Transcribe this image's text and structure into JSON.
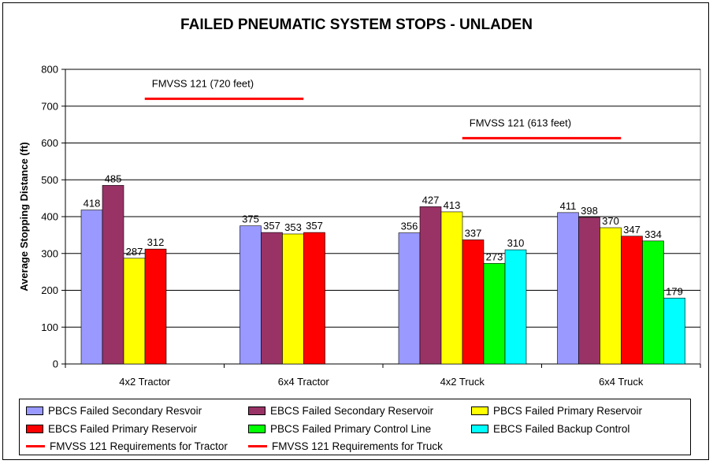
{
  "chart_data": {
    "type": "bar",
    "title": "FAILED PNEUMATIC SYSTEM STOPS - UNLADEN",
    "ylabel": "Average Stopping Distance (ft)",
    "xlabel": "",
    "ylim": [
      0,
      800
    ],
    "yticks": [
      "0",
      "100",
      "200",
      "300",
      "400",
      "500",
      "600",
      "700",
      "800"
    ],
    "grid": true,
    "legend_position": "bottom",
    "categories": [
      "4x2 Tractor",
      "6x4 Tractor",
      "4x2 Truck",
      "6x4 Truck"
    ],
    "series": [
      {
        "name": "PBCS Failed Secondary Resvoir",
        "color": "#9999ff",
        "values": [
          418,
          375,
          356,
          411
        ]
      },
      {
        "name": "EBCS Failed Secondary Reservoir",
        "color": "#993366",
        "values": [
          485,
          357,
          427,
          398
        ]
      },
      {
        "name": "PBCS Failed Primary Reservoir",
        "color": "#ffff00",
        "values": [
          287,
          353,
          413,
          370
        ]
      },
      {
        "name": "EBCS Failed Primary Reservoir",
        "color": "#ff0000",
        "values": [
          312,
          357,
          337,
          347
        ]
      },
      {
        "name": "PBCS Failed Primary Control Line",
        "color": "#00ff00",
        "values": [
          null,
          null,
          273,
          334
        ]
      },
      {
        "name": "EBCS Failed Backup Control",
        "color": "#00ffff",
        "values": [
          null,
          null,
          310,
          179
        ]
      }
    ],
    "requirements": [
      {
        "name": "FMVSS 121 Requirements for Tractor",
        "label": "FMVSS 121 (720 feet)",
        "value": 720,
        "categories": [
          0,
          1
        ],
        "color": "#ff0000"
      },
      {
        "name": "FMVSS 121 Requirements for Truck",
        "label": "FMVSS 121 (613 feet)",
        "value": 613,
        "categories": [
          2,
          3
        ],
        "color": "#ff0000"
      }
    ]
  }
}
